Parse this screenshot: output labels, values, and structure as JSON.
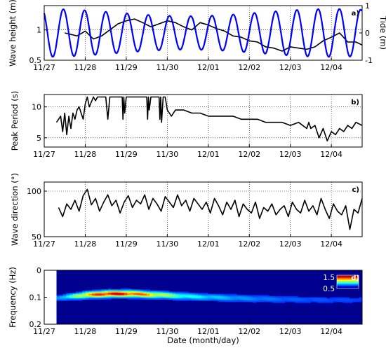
{
  "chart_data": [
    {
      "panel": "a)",
      "type": "line",
      "x_ticks": [
        "11/27",
        "11/28",
        "11/29",
        "11/30",
        "12/01",
        "12/02",
        "12/03",
        "12/04"
      ],
      "ylabel": "Wave height (m)",
      "ylabel_right": "Tide (m)",
      "ylim": [
        0.5,
        1.4
      ],
      "y_ticks": [
        "0.5",
        "1"
      ],
      "ylim_right": [
        -1,
        1
      ],
      "y_ticks_right": [
        "-1",
        "0",
        "1"
      ],
      "grid": true,
      "series": [
        {
          "color": "#000000",
          "axis": "left",
          "x": [
            0.5,
            0.8,
            1.0,
            1.2,
            1.4,
            1.6,
            1.8,
            2.0,
            2.2,
            2.4,
            2.6,
            2.8,
            3.0,
            3.2,
            3.4,
            3.6,
            3.8,
            4.0,
            4.2,
            4.4,
            4.6,
            4.8,
            5.0,
            5.2,
            5.4,
            5.6,
            5.8,
            6.0,
            6.2,
            6.4,
            6.6,
            6.8,
            7.0,
            7.2,
            7.4,
            7.6,
            7.75
          ],
          "values": [
            0.95,
            0.9,
            0.98,
            0.85,
            0.9,
            1.0,
            1.1,
            1.15,
            1.18,
            1.12,
            1.05,
            1.1,
            1.15,
            1.12,
            1.05,
            1.0,
            1.12,
            1.08,
            1.02,
            0.98,
            0.9,
            0.88,
            0.82,
            0.8,
            0.72,
            0.7,
            0.65,
            0.72,
            0.7,
            0.68,
            0.72,
            0.82,
            0.88,
            0.95,
            0.8,
            0.8,
            0.75
          ]
        },
        {
          "color": "#0000ff",
          "axis": "right",
          "model": "tide",
          "t0": -0.05,
          "period_days": 0.5175,
          "amplitude": 0.88,
          "x_range": [
            0,
            7.75
          ]
        }
      ]
    },
    {
      "panel": "b)",
      "type": "line",
      "x_ticks": [
        "11/27",
        "11/28",
        "11/29",
        "11/30",
        "12/01",
        "12/02",
        "12/03",
        "12/04"
      ],
      "ylabel": "Peak Period (s)",
      "ylim": [
        3.5,
        12
      ],
      "y_ticks": [
        "5",
        "10"
      ],
      "grid": true,
      "series": [
        {
          "color": "#000000",
          "x": [
            0.3,
            0.4,
            0.45,
            0.5,
            0.55,
            0.6,
            0.65,
            0.7,
            0.75,
            0.8,
            0.85,
            0.9,
            0.95,
            1.0,
            1.05,
            1.1,
            1.2,
            1.25,
            1.3,
            1.4,
            1.5,
            1.55,
            1.6,
            1.8,
            1.9,
            1.92,
            1.94,
            1.96,
            2.0,
            2.2,
            2.4,
            2.5,
            2.52,
            2.54,
            2.56,
            2.6,
            2.8,
            2.82,
            2.84,
            2.86,
            2.9,
            2.95,
            3.0,
            3.1,
            3.2,
            3.4,
            3.6,
            3.8,
            4.0,
            4.2,
            4.4,
            4.6,
            4.8,
            5.0,
            5.2,
            5.4,
            5.6,
            5.8,
            6.0,
            6.2,
            6.4,
            6.45,
            6.5,
            6.6,
            6.7,
            6.8,
            6.9,
            7.0,
            7.1,
            7.2,
            7.3,
            7.4,
            7.5,
            7.6,
            7.75
          ],
          "values": [
            7.5,
            8.5,
            6.0,
            9.0,
            5.5,
            8.5,
            6.5,
            9.0,
            8.0,
            9.5,
            10.0,
            9.0,
            8.0,
            10.5,
            11.6,
            10.0,
            11.6,
            11.0,
            11.6,
            11.6,
            11.6,
            8.0,
            11.6,
            11.6,
            11.6,
            8.0,
            11.6,
            9.0,
            11.6,
            11.6,
            11.6,
            11.6,
            8.0,
            11.6,
            9.5,
            11.6,
            11.6,
            8.0,
            11.6,
            7.5,
            11.6,
            11.6,
            9.5,
            8.5,
            9.5,
            9.5,
            9.0,
            9.0,
            8.5,
            8.5,
            8.5,
            8.5,
            8.0,
            8.0,
            8.0,
            7.5,
            7.5,
            7.5,
            7.0,
            7.5,
            6.5,
            7.5,
            6.5,
            7.0,
            5.0,
            6.5,
            4.5,
            6.0,
            5.5,
            6.5,
            6.0,
            7.0,
            6.5,
            7.5,
            7.0
          ]
        }
      ]
    },
    {
      "panel": "c)",
      "type": "line",
      "x_ticks": [
        "11/27",
        "11/28",
        "11/29",
        "11/30",
        "12/01",
        "12/02",
        "12/03",
        "12/04"
      ],
      "ylabel": "Wave direction (°)",
      "ylim": [
        50,
        110
      ],
      "y_ticks": [
        "50",
        "100"
      ],
      "grid": true,
      "series": [
        {
          "color": "#000000",
          "x": [
            0.35,
            0.45,
            0.55,
            0.65,
            0.75,
            0.85,
            0.95,
            1.05,
            1.15,
            1.25,
            1.35,
            1.45,
            1.55,
            1.65,
            1.75,
            1.85,
            1.95,
            2.05,
            2.15,
            2.25,
            2.35,
            2.45,
            2.55,
            2.65,
            2.75,
            2.85,
            2.95,
            3.05,
            3.15,
            3.25,
            3.35,
            3.45,
            3.55,
            3.65,
            3.75,
            3.85,
            3.95,
            4.05,
            4.15,
            4.25,
            4.35,
            4.45,
            4.55,
            4.65,
            4.75,
            4.85,
            4.95,
            5.05,
            5.15,
            5.25,
            5.35,
            5.45,
            5.55,
            5.65,
            5.75,
            5.85,
            5.95,
            6.05,
            6.15,
            6.25,
            6.35,
            6.45,
            6.55,
            6.65,
            6.75,
            6.85,
            6.95,
            7.05,
            7.15,
            7.25,
            7.35,
            7.45,
            7.55,
            7.65,
            7.75
          ],
          "values": [
            82,
            72,
            86,
            80,
            90,
            78,
            95,
            102,
            85,
            92,
            78,
            88,
            96,
            84,
            90,
            76,
            88,
            95,
            82,
            90,
            86,
            96,
            80,
            92,
            86,
            78,
            94,
            88,
            82,
            96,
            84,
            90,
            78,
            92,
            86,
            80,
            88,
            76,
            92,
            84,
            74,
            88,
            80,
            90,
            72,
            86,
            80,
            76,
            88,
            70,
            82,
            78,
            86,
            74,
            80,
            84,
            72,
            88,
            80,
            76,
            90,
            78,
            84,
            74,
            92,
            80,
            70,
            86,
            78,
            74,
            84,
            58,
            80,
            76,
            92
          ]
        }
      ]
    },
    {
      "panel": "d)",
      "type": "heatmap",
      "x_ticks": [
        "11/27",
        "11/28",
        "11/29",
        "11/30",
        "12/01",
        "12/02",
        "12/03",
        "12/04"
      ],
      "xlabel": "Date (month/day)",
      "ylabel": "Frequency (Hz)",
      "ylim": [
        0.2,
        0
      ],
      "y_ticks": [
        "0",
        "0.1",
        "0.2"
      ],
      "colorbar_ticks": [
        "1.5",
        "0.5"
      ],
      "colormap": "jet",
      "data_start_day": 0.3,
      "ridges": [
        {
          "x": 0.3,
          "f": 0.103,
          "e": 0.2,
          "w": 0.009
        },
        {
          "x": 0.7,
          "f": 0.097,
          "e": 0.55,
          "w": 0.01
        },
        {
          "x": 1.0,
          "f": 0.092,
          "e": 0.85,
          "w": 0.011
        },
        {
          "x": 1.5,
          "f": 0.088,
          "e": 1.25,
          "w": 0.011
        },
        {
          "x": 2.0,
          "f": 0.087,
          "e": 1.2,
          "w": 0.011
        },
        {
          "x": 2.5,
          "f": 0.09,
          "e": 0.95,
          "w": 0.011
        },
        {
          "x": 3.0,
          "f": 0.093,
          "e": 0.65,
          "w": 0.011
        },
        {
          "x": 3.5,
          "f": 0.097,
          "e": 0.45,
          "w": 0.011
        },
        {
          "x": 4.0,
          "f": 0.1,
          "e": 0.35,
          "w": 0.011
        },
        {
          "x": 5.0,
          "f": 0.105,
          "e": 0.22,
          "w": 0.012
        },
        {
          "x": 6.0,
          "f": 0.108,
          "e": 0.15,
          "w": 0.012
        },
        {
          "x": 7.0,
          "f": 0.11,
          "e": 0.12,
          "w": 0.012
        },
        {
          "x": 7.75,
          "f": 0.11,
          "e": 0.1,
          "w": 0.012
        }
      ]
    }
  ]
}
